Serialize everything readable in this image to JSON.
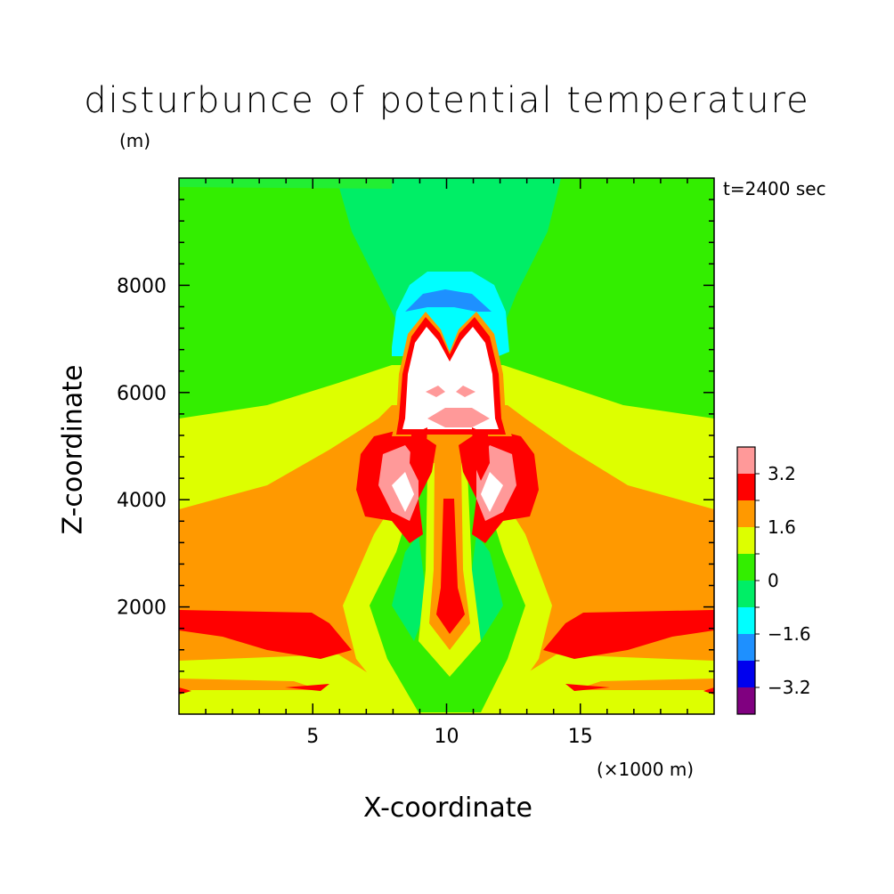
{
  "title": "disturbunce of potential temperature",
  "time_label": "t=2400 sec",
  "chart_data": {
    "type": "heatmap",
    "title": "disturbunce of potential temperature",
    "xlabel": "X-coordinate",
    "ylabel": "Z-coordinate",
    "x_unit": "(×1000 m)",
    "y_unit": "(m)",
    "xlim": [
      0,
      20
    ],
    "ylim": [
      0,
      10000
    ],
    "x_ticks": [
      5,
      10,
      15
    ],
    "y_ticks": [
      2000,
      4000,
      6000,
      8000
    ],
    "colorbar": {
      "levels": [
        -4.0,
        -3.2,
        -2.4,
        -1.6,
        -0.8,
        0,
        0.8,
        1.6,
        2.4,
        3.2,
        4.0
      ],
      "labels": [
        "3.2",
        "1.6",
        "0",
        "−1.6",
        "−3.2"
      ],
      "label_values": [
        3.2,
        1.6,
        0,
        -1.6,
        -3.2
      ],
      "colors": [
        "#800080",
        "#0000ee",
        "#1e90ff",
        "#00ffff",
        "#00ee66",
        "#33ee00",
        "#ddff00",
        "#ff9900",
        "#ff0000",
        "#ff9999"
      ]
    },
    "features": [
      {
        "name": "thermal bubble",
        "center_x": 10,
        "top_z": 7400,
        "bottom_z": 5300,
        "value": "> 4.0"
      },
      {
        "name": "cold cap",
        "center_x": 10,
        "top_z": 8200,
        "bottom_z": 6700,
        "value": -2.4
      },
      {
        "name": "left side lobe",
        "center_x": 8.3,
        "center_z": 4200,
        "value": 3.2
      },
      {
        "name": "right side lobe",
        "center_x": 11.7,
        "center_z": 4200,
        "value": 3.2
      },
      {
        "name": "central jet",
        "center_x": 10,
        "top_z": 5000,
        "bottom_z": 1500,
        "value": 2.4
      },
      {
        "name": "low-level warm band",
        "z": 1700,
        "value": 2.4
      }
    ]
  }
}
